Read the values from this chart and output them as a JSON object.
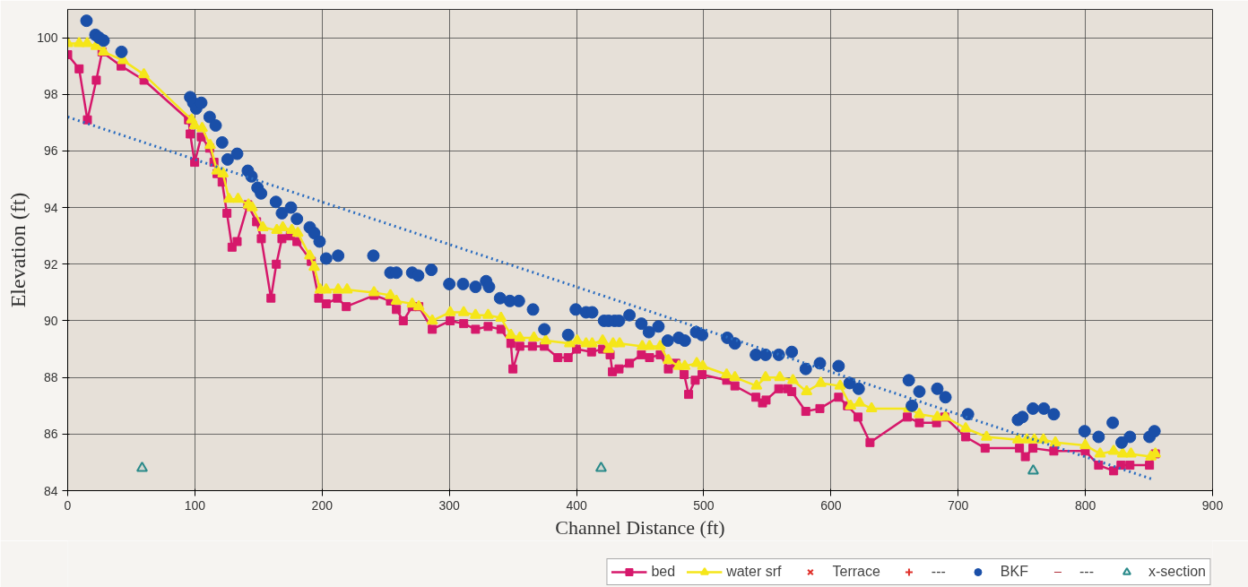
{
  "chart_data": {
    "type": "line",
    "xlabel": "Channel Distance (ft)",
    "ylabel": "Elevation (ft)",
    "xlim": [
      0,
      900
    ],
    "ylim": [
      84,
      101
    ],
    "xticks": [
      0,
      100,
      200,
      300,
      400,
      500,
      600,
      700,
      800,
      900
    ],
    "yticks": [
      84,
      86,
      88,
      90,
      92,
      94,
      96,
      98,
      100
    ],
    "grid": true,
    "legend": "bottom right",
    "series": [
      {
        "name": "bed",
        "marker": "square",
        "color": "#d6186b",
        "x": [
          0,
          9,
          15.5,
          22.5,
          27,
          42,
          60,
          95,
          96.3,
          99.8,
          105,
          111.6,
          115,
          117.4,
          121.4,
          125.2,
          129.2,
          133.2,
          141.6,
          148.5,
          152.2,
          159.8,
          164,
          168.4,
          175,
          180.2,
          191.5,
          197.3,
          203.2,
          212,
          219,
          240.8,
          253.7,
          258.4,
          263.8,
          270.8,
          276,
          286.6,
          300.7,
          311.3,
          320.6,
          330.5,
          340.6,
          348.4,
          350,
          355.4,
          365.3,
          374.7,
          385.3,
          393.4,
          400,
          411.8,
          420.5,
          426.4,
          428.2,
          433.4,
          441.6,
          451,
          457.4,
          465.8,
          472.2,
          478,
          484.6,
          488.1,
          493.3,
          498.7,
          518,
          524.5,
          541,
          546.2,
          549,
          559,
          566,
          569.2,
          580.2,
          591.3,
          606,
          613,
          621.3,
          630.7,
          660,
          669.5,
          683,
          689.4,
          705.9,
          721.2,
          748.2,
          752.8,
          758.8,
          775.2,
          799.9,
          810.4,
          822.2,
          828,
          835,
          850.4,
          855
        ],
        "values": [
          99.4,
          98.9,
          97.1,
          98.5,
          99.5,
          99.0,
          98.5,
          97.1,
          96.6,
          95.6,
          96.5,
          96.1,
          95.6,
          95.2,
          94.9,
          93.8,
          92.6,
          92.8,
          94.1,
          93.5,
          92.9,
          90.8,
          92.0,
          92.9,
          93.0,
          92.8,
          92.1,
          90.8,
          90.6,
          90.8,
          90.5,
          90.9,
          90.7,
          90.4,
          90.0,
          90.5,
          90.5,
          89.7,
          90.0,
          89.9,
          89.7,
          89.8,
          89.7,
          89.2,
          88.3,
          89.1,
          89.1,
          89.1,
          88.7,
          88.7,
          89.0,
          88.9,
          89.0,
          88.8,
          88.2,
          88.3,
          88.5,
          88.8,
          88.7,
          88.8,
          88.3,
          88.5,
          88.1,
          87.4,
          87.9,
          88.1,
          87.9,
          87.7,
          87.3,
          87.1,
          87.2,
          87.6,
          87.6,
          87.5,
          86.8,
          86.9,
          87.3,
          87.0,
          86.6,
          85.7,
          86.6,
          86.4,
          86.4,
          86.6,
          85.9,
          85.5,
          85.5,
          85.2,
          85.5,
          85.4,
          85.4,
          84.9,
          84.7,
          84.9,
          84.9,
          84.9,
          85.3
        ]
      },
      {
        "name": "water srf",
        "marker": "triangle",
        "color": "#f5e61a",
        "x": [
          0,
          9,
          15.3,
          22.3,
          28.2,
          43.5,
          59.9,
          97.5,
          99.8,
          105.7,
          112,
          117.4,
          122.1,
          126.8,
          133.9,
          142.1,
          145,
          153.4,
          164.4,
          169.1,
          176.2,
          180.9,
          190.3,
          193.8,
          198.5,
          203.2,
          212.6,
          219.6,
          240.8,
          253.7,
          258.4,
          270.8,
          276,
          286.6,
          300.7,
          311.3,
          320.6,
          330.5,
          340.6,
          348.4,
          355.4,
          366.5,
          375.8,
          394.6,
          400.5,
          407.5,
          412.3,
          420.5,
          425.2,
          428.7,
          433.9,
          451.7,
          457.4,
          465.8,
          472.2,
          480.4,
          485.1,
          494.5,
          499.2,
          518,
          524.5,
          541.5,
          548.6,
          559.8,
          570.1,
          580.9,
          592,
          607.2,
          615.4,
          622.5,
          631.9,
          661.2,
          669.5,
          683.6,
          690,
          705.9,
          722.3,
          747,
          754,
          759.9,
          767,
          776.4,
          799.9,
          811.6,
          822.2,
          829.3,
          835.8,
          851.5,
          855
        ],
        "values": [
          99.8,
          99.8,
          99.8,
          99.7,
          99.5,
          99.2,
          98.7,
          97.1,
          96.9,
          96.8,
          96.2,
          95.3,
          95.2,
          94.3,
          94.3,
          94.1,
          94.0,
          93.3,
          93.2,
          93.3,
          93.2,
          93.1,
          92.3,
          91.9,
          91.1,
          91.1,
          91.1,
          91.1,
          91.0,
          90.9,
          90.7,
          90.6,
          90.5,
          90.0,
          90.3,
          90.3,
          90.2,
          90.2,
          90.1,
          89.5,
          89.4,
          89.4,
          89.3,
          89.2,
          89.3,
          89.2,
          89.2,
          89.3,
          89.0,
          89.2,
          89.2,
          89.1,
          89.1,
          89.1,
          88.6,
          88.4,
          88.4,
          88.5,
          88.4,
          88.1,
          88.0,
          87.7,
          88.0,
          88.0,
          87.9,
          87.5,
          87.8,
          87.7,
          87.0,
          87.1,
          86.9,
          86.9,
          86.7,
          86.6,
          86.6,
          86.2,
          85.9,
          85.8,
          85.8,
          85.8,
          85.8,
          85.7,
          85.6,
          85.3,
          85.4,
          85.3,
          85.3,
          85.2,
          85.3
        ]
      },
      {
        "name": "Terrace",
        "type": "scatter",
        "marker": "x",
        "color": "#e0302a"
      },
      {
        "name": "---",
        "type": "scatter",
        "marker": "cross",
        "color": "#e0302a"
      },
      {
        "name": "BKF",
        "type": "scatter",
        "marker": "circle",
        "color": "#1a4fa8",
        "x": [
          14.8,
          21.8,
          24.7,
          28.2,
          42.3,
          96.3,
          98.7,
          101,
          105,
          111.6,
          116.3,
          121.4,
          125.7,
          133.2,
          141.6,
          144.5,
          149.2,
          152,
          163.7,
          168.4,
          175.5,
          180.2,
          190.3,
          193.8,
          198,
          203.2,
          212.6,
          240.3,
          253.7,
          258.4,
          270.8,
          275.5,
          285.9,
          300,
          310.8,
          320.6,
          328.9,
          331.2,
          339.9,
          347.6,
          354.7,
          365.8,
          374.7,
          393.4,
          399.4,
          407.5,
          412.3,
          421.6,
          425.2,
          429.9,
          433.4,
          441.6,
          451,
          456.9,
          464.4,
          471.7,
          480.4,
          485.1,
          494,
          498.7,
          518.5,
          524.5,
          541,
          548.6,
          559,
          569.2,
          580.2,
          591.3,
          606,
          614.7,
          621.8,
          661.2,
          663.6,
          669.5,
          683.6,
          690,
          707.7,
          747,
          750.5,
          758.8,
          767.4,
          775.2,
          799.4,
          810.4,
          821.5,
          828.5,
          835,
          850.4,
          854.3
        ],
        "values": [
          100.6,
          100.1,
          100.0,
          99.9,
          99.5,
          97.9,
          97.7,
          97.5,
          97.7,
          97.2,
          96.9,
          96.3,
          95.7,
          95.9,
          95.3,
          95.1,
          94.7,
          94.5,
          94.2,
          93.8,
          94.0,
          93.6,
          93.3,
          93.1,
          92.8,
          92.2,
          92.3,
          92.3,
          91.7,
          91.7,
          91.7,
          91.6,
          91.8,
          91.3,
          91.3,
          91.2,
          91.4,
          91.2,
          90.8,
          90.7,
          90.7,
          90.4,
          89.7,
          89.5,
          90.4,
          90.3,
          90.3,
          90.0,
          90.0,
          90.0,
          90.0,
          90.2,
          89.9,
          89.6,
          89.8,
          89.3,
          89.4,
          89.3,
          89.6,
          89.5,
          89.4,
          89.2,
          88.8,
          88.8,
          88.8,
          88.9,
          88.3,
          88.5,
          88.4,
          87.8,
          87.6,
          87.9,
          87.0,
          87.5,
          87.6,
          87.3,
          86.7,
          86.5,
          86.6,
          86.9,
          86.9,
          86.7,
          86.1,
          85.9,
          86.4,
          85.7,
          85.9,
          85.9,
          86.1
        ]
      },
      {
        "name": "---",
        "type": "scatter",
        "marker": "dash",
        "color": "#b0303a"
      },
      {
        "name": "x-section",
        "type": "scatter",
        "marker": "triangle",
        "color": "#2a8a8a",
        "x": [
          58.5,
          419.3,
          759
        ],
        "values": [
          84.8,
          84.8,
          84.7
        ]
      },
      {
        "marker": "none",
        "line_style": "dotted",
        "color": "#2a6cc0",
        "x": [
          0,
          853
        ],
        "values": [
          97.2,
          84.4
        ]
      }
    ]
  }
}
